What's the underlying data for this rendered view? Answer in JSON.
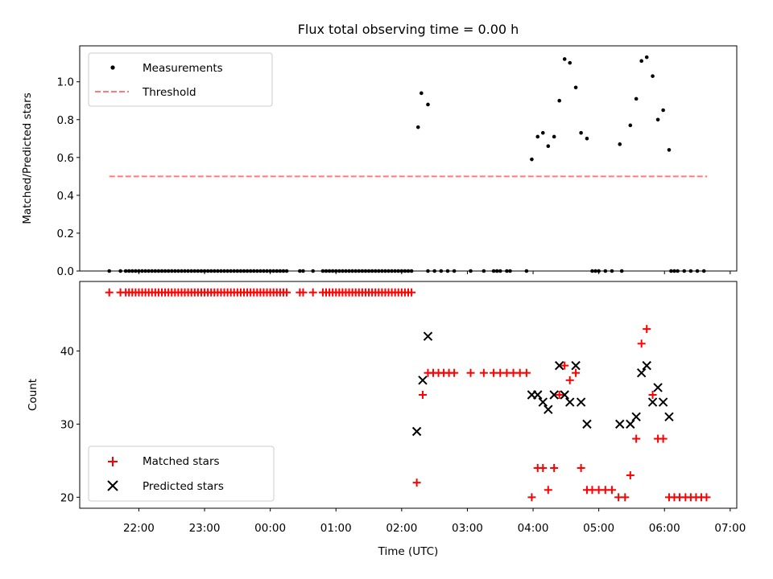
{
  "chart_data": [
    {
      "type": "scatter",
      "title": "Flux total observing time = 0.00 h",
      "xlabel": "",
      "ylabel": "Matched/Predicted stars",
      "ylim": [
        0,
        1.19
      ],
      "yticks": [
        "0.0",
        "0.2",
        "0.4",
        "0.6",
        "0.8",
        "1.0"
      ],
      "ytick_values": [
        0,
        0.2,
        0.4,
        0.6,
        0.8,
        1.0
      ],
      "xlim_hours": [
        -2.9,
        7.1
      ],
      "legend_position": "top-left",
      "series": [
        {
          "name": "Measurements",
          "marker": "dot",
          "color": "#000000",
          "x": [
            -2.45,
            -2.28,
            -2.2,
            -2.15,
            -2.1,
            -2.05,
            -2.0,
            -1.95,
            -1.9,
            -1.85,
            -1.8,
            -1.75,
            -1.7,
            -1.65,
            -1.6,
            -1.55,
            -1.5,
            -1.45,
            -1.4,
            -1.35,
            -1.3,
            -1.25,
            -1.2,
            -1.15,
            -1.1,
            -1.05,
            -1.0,
            -0.95,
            -0.9,
            -0.85,
            -0.8,
            -0.75,
            -0.7,
            -0.65,
            -0.6,
            -0.55,
            -0.5,
            -0.45,
            -0.4,
            -0.35,
            -0.3,
            -0.25,
            -0.2,
            -0.15,
            -0.1,
            -0.05,
            0.0,
            0.05,
            0.1,
            0.15,
            0.2,
            0.25,
            0.45,
            0.5,
            0.65,
            0.8,
            0.85,
            0.9,
            0.95,
            1.0,
            1.05,
            1.1,
            1.15,
            1.2,
            1.25,
            1.3,
            1.35,
            1.4,
            1.45,
            1.5,
            1.55,
            1.6,
            1.65,
            1.7,
            1.75,
            1.8,
            1.85,
            1.9,
            1.95,
            2.0,
            2.05,
            2.1,
            2.15,
            2.4,
            2.5,
            2.6,
            2.7,
            2.8,
            3.05,
            3.25,
            3.4,
            3.45,
            3.5,
            3.6,
            3.65,
            3.9,
            4.9,
            4.95,
            5.0,
            5.1,
            5.2,
            5.35,
            6.1,
            6.15,
            6.2,
            6.3,
            6.4,
            6.5,
            6.6,
            2.25,
            2.3,
            2.4,
            3.98,
            4.07,
            4.15,
            4.23,
            4.32,
            4.4,
            4.48,
            4.56,
            4.65,
            4.73,
            4.82,
            5.32,
            5.48,
            5.57,
            5.65,
            5.73,
            5.82,
            5.9,
            5.98,
            6.07
          ],
          "y": [
            0,
            0,
            0,
            0,
            0,
            0,
            0,
            0,
            0,
            0,
            0,
            0,
            0,
            0,
            0,
            0,
            0,
            0,
            0,
            0,
            0,
            0,
            0,
            0,
            0,
            0,
            0,
            0,
            0,
            0,
            0,
            0,
            0,
            0,
            0,
            0,
            0,
            0,
            0,
            0,
            0,
            0,
            0,
            0,
            0,
            0,
            0,
            0,
            0,
            0,
            0,
            0,
            0,
            0,
            0,
            0,
            0,
            0,
            0,
            0,
            0,
            0,
            0,
            0,
            0,
            0,
            0,
            0,
            0,
            0,
            0,
            0,
            0,
            0,
            0,
            0,
            0,
            0,
            0,
            0,
            0,
            0,
            0,
            0,
            0,
            0,
            0,
            0,
            0,
            0,
            0,
            0,
            0,
            0,
            0,
            0,
            0,
            0,
            0,
            0,
            0,
            0,
            0,
            0,
            0,
            0,
            0,
            0,
            0,
            0.76,
            0.94,
            0.88,
            0.59,
            0.71,
            0.73,
            0.66,
            0.71,
            0.9,
            1.12,
            1.1,
            0.97,
            0.73,
            0.7,
            0.67,
            0.77,
            0.91,
            1.11,
            1.13,
            1.03,
            0.8,
            0.85,
            0.64
          ]
        },
        {
          "name": "Threshold",
          "style": "dashed",
          "color": "#ff7b7b",
          "x": [
            -2.45,
            6.65
          ],
          "y": [
            0.5,
            0.5
          ]
        }
      ]
    },
    {
      "type": "scatter",
      "title": "",
      "xlabel": "Time (UTC)",
      "ylabel": "Count",
      "ylim": [
        18.5,
        49.5
      ],
      "yticks": [
        "20",
        "30",
        "40"
      ],
      "ytick_values": [
        20,
        30,
        40
      ],
      "xlim_hours": [
        -2.9,
        7.1
      ],
      "xticks": [
        "22:00",
        "23:00",
        "00:00",
        "01:00",
        "02:00",
        "03:00",
        "04:00",
        "05:00",
        "06:00",
        "07:00"
      ],
      "xtick_values": [
        -2,
        -1,
        0,
        1,
        2,
        3,
        4,
        5,
        6,
        7
      ],
      "legend_position": "lower-left",
      "series": [
        {
          "name": "Matched stars",
          "marker": "plus",
          "color": "#ff0000",
          "x": [
            -2.45,
            -2.28,
            -2.2,
            -2.15,
            -2.1,
            -2.05,
            -2.0,
            -1.95,
            -1.9,
            -1.85,
            -1.8,
            -1.75,
            -1.7,
            -1.65,
            -1.6,
            -1.55,
            -1.5,
            -1.45,
            -1.4,
            -1.35,
            -1.3,
            -1.25,
            -1.2,
            -1.15,
            -1.1,
            -1.05,
            -1.0,
            -0.95,
            -0.9,
            -0.85,
            -0.8,
            -0.75,
            -0.7,
            -0.65,
            -0.6,
            -0.55,
            -0.5,
            -0.45,
            -0.4,
            -0.35,
            -0.3,
            -0.25,
            -0.2,
            -0.15,
            -0.1,
            -0.05,
            0.0,
            0.05,
            0.1,
            0.15,
            0.2,
            0.25,
            0.45,
            0.5,
            0.65,
            0.8,
            0.85,
            0.9,
            0.95,
            1.0,
            1.05,
            1.1,
            1.15,
            1.2,
            1.25,
            1.3,
            1.35,
            1.4,
            1.45,
            1.5,
            1.55,
            1.6,
            1.65,
            1.7,
            1.75,
            1.8,
            1.85,
            1.9,
            1.95,
            2.0,
            2.05,
            2.1,
            2.15,
            2.23,
            2.32,
            2.4,
            2.48,
            2.56,
            2.64,
            2.72,
            2.8,
            3.05,
            3.25,
            3.4,
            3.5,
            3.6,
            3.7,
            3.8,
            3.9,
            3.98,
            4.07,
            4.15,
            4.23,
            4.32,
            4.4,
            4.48,
            4.56,
            4.65,
            4.73,
            4.82,
            4.9,
            5.0,
            5.1,
            5.2,
            5.3,
            5.4,
            5.48,
            5.57,
            5.65,
            5.73,
            5.82,
            5.9,
            5.98,
            6.07,
            6.15,
            6.23,
            6.32,
            6.4,
            6.48,
            6.56,
            6.64
          ],
          "y": [
            48,
            48,
            48,
            48,
            48,
            48,
            48,
            48,
            48,
            48,
            48,
            48,
            48,
            48,
            48,
            48,
            48,
            48,
            48,
            48,
            48,
            48,
            48,
            48,
            48,
            48,
            48,
            48,
            48,
            48,
            48,
            48,
            48,
            48,
            48,
            48,
            48,
            48,
            48,
            48,
            48,
            48,
            48,
            48,
            48,
            48,
            48,
            48,
            48,
            48,
            48,
            48,
            48,
            48,
            48,
            48,
            48,
            48,
            48,
            48,
            48,
            48,
            48,
            48,
            48,
            48,
            48,
            48,
            48,
            48,
            48,
            48,
            48,
            48,
            48,
            48,
            48,
            48,
            48,
            48,
            48,
            48,
            48,
            22,
            34,
            37,
            37,
            37,
            37,
            37,
            37,
            37,
            37,
            37,
            37,
            37,
            37,
            37,
            37,
            20,
            24,
            24,
            21,
            24,
            34,
            38,
            36,
            37,
            24,
            21,
            21,
            21,
            21,
            21,
            20,
            20,
            23,
            28,
            41,
            43,
            34,
            28,
            28,
            20,
            20,
            20,
            20,
            20,
            20,
            20,
            20
          ]
        },
        {
          "name": "Predicted stars",
          "marker": "x",
          "color": "#000000",
          "x": [
            2.23,
            2.32,
            2.4,
            3.98,
            4.07,
            4.15,
            4.23,
            4.32,
            4.4,
            4.48,
            4.56,
            4.65,
            4.73,
            4.82,
            5.32,
            5.48,
            5.57,
            5.65,
            5.73,
            5.82,
            5.9,
            5.98,
            6.07
          ],
          "y": [
            29,
            36,
            42,
            34,
            34,
            33,
            32,
            34,
            38,
            34,
            33,
            38,
            33,
            30,
            30,
            30,
            31,
            37,
            38,
            33,
            35,
            33,
            31
          ]
        }
      ]
    }
  ]
}
